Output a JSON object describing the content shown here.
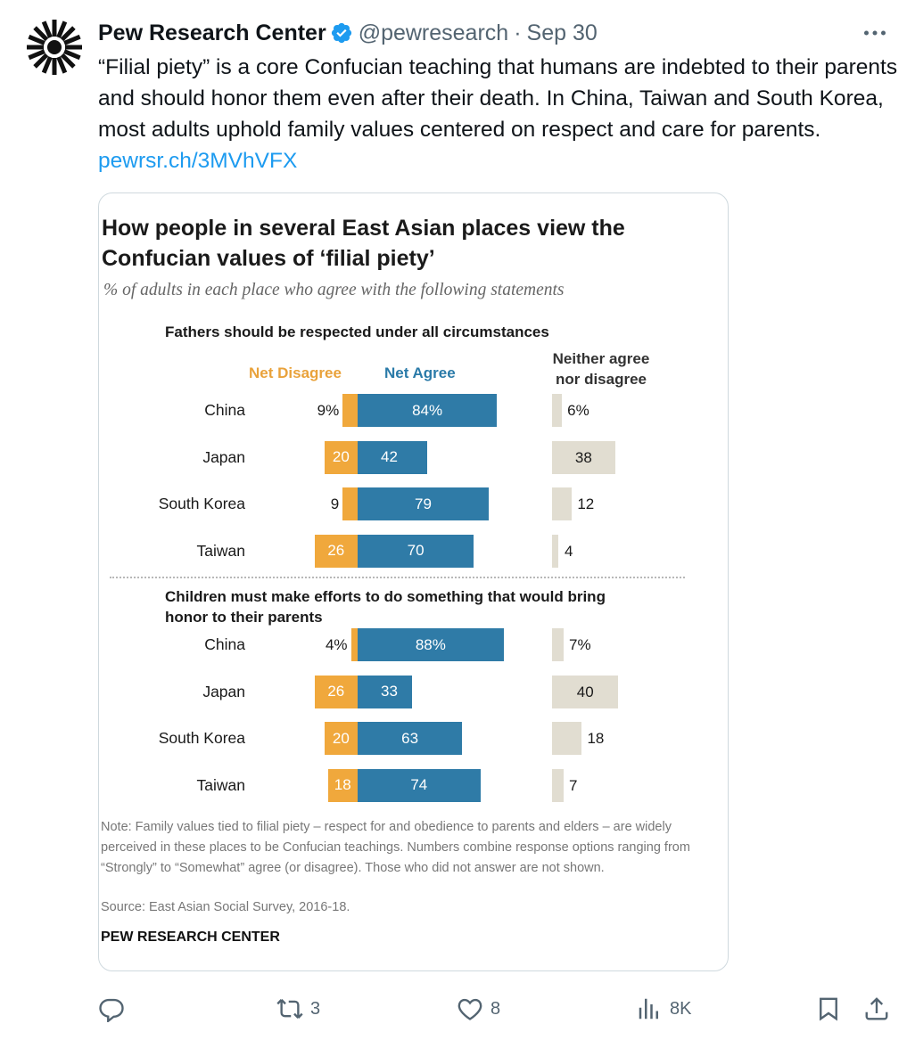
{
  "tweet": {
    "author": "Pew Research Center",
    "handle": "@pewresearch",
    "separator": "·",
    "date": "Sep 30",
    "text": "“Filial piety” is a core Confucian teaching that humans are indebted to their parents and should honor them even after their death. In China, Taiwan and South Korea, most adults uphold family values centered on respect and care for parents. ",
    "link": "pewrsr.ch/3MVhVFX",
    "avatar_icon": "pew-logo-icon",
    "verified_icon": "verified-badge-icon",
    "more_icon": "more-dots-icon"
  },
  "chart_data": {
    "type": "bar",
    "title": "How people in several East Asian places view the Confucian values of ‘filial piety’",
    "subtitle": "% of adults in each place who agree with the following statements",
    "columns": {
      "disagree": "Net Disagree",
      "agree": "Net Agree",
      "neither_line1": "Neither agree",
      "neither_line2": "nor disagree"
    },
    "colors": {
      "disagree": "#f0a83c",
      "agree": "#2f7ba7",
      "neither": "#e1ddd1"
    },
    "sections": [
      {
        "title_line1": "Fathers should be respected under all circumstances",
        "title_line2": "",
        "rows": [
          {
            "country": "China",
            "disagree": 9,
            "agree": 84,
            "neither": 6,
            "disagree_label": "9%",
            "agree_label": "84%",
            "neither_label": "6%"
          },
          {
            "country": "Japan",
            "disagree": 20,
            "agree": 42,
            "neither": 38,
            "disagree_label": "20",
            "agree_label": "42",
            "neither_label": "38"
          },
          {
            "country": "South Korea",
            "disagree": 9,
            "agree": 79,
            "neither": 12,
            "disagree_label": "9",
            "agree_label": "79",
            "neither_label": "12"
          },
          {
            "country": "Taiwan",
            "disagree": 26,
            "agree": 70,
            "neither": 4,
            "disagree_label": "26",
            "agree_label": "70",
            "neither_label": "4"
          }
        ]
      },
      {
        "title_line1": "Children must make efforts to do something that would bring",
        "title_line2": "honor to their parents",
        "rows": [
          {
            "country": "China",
            "disagree": 4,
            "agree": 88,
            "neither": 7,
            "disagree_label": "4%",
            "agree_label": "88%",
            "neither_label": "7%"
          },
          {
            "country": "Japan",
            "disagree": 26,
            "agree": 33,
            "neither": 40,
            "disagree_label": "26",
            "agree_label": "33",
            "neither_label": "40"
          },
          {
            "country": "South Korea",
            "disagree": 20,
            "agree": 63,
            "neither": 18,
            "disagree_label": "20",
            "agree_label": "63",
            "neither_label": "18"
          },
          {
            "country": "Taiwan",
            "disagree": 18,
            "agree": 74,
            "neither": 7,
            "disagree_label": "18",
            "agree_label": "74",
            "neither_label": "7"
          }
        ]
      }
    ],
    "note": "Note: Family values tied to filial piety – respect for and obedience to parents and elders – are widely perceived in these places to be Confucian teachings. Numbers combine response options ranging from “Strongly” to “Somewhat” agree (or disagree). Those who did not answer are not shown.",
    "source": "Source: East Asian Social Survey, 2016-18.",
    "brand": "PEW RESEARCH CENTER"
  },
  "actions": {
    "reply": {
      "icon": "reply-icon",
      "count": ""
    },
    "retweet": {
      "icon": "retweet-icon",
      "count": "3"
    },
    "like": {
      "icon": "heart-icon",
      "count": "8"
    },
    "views": {
      "icon": "views-icon",
      "count": "8K"
    },
    "bookmark": {
      "icon": "bookmark-icon"
    },
    "share": {
      "icon": "share-icon"
    }
  }
}
